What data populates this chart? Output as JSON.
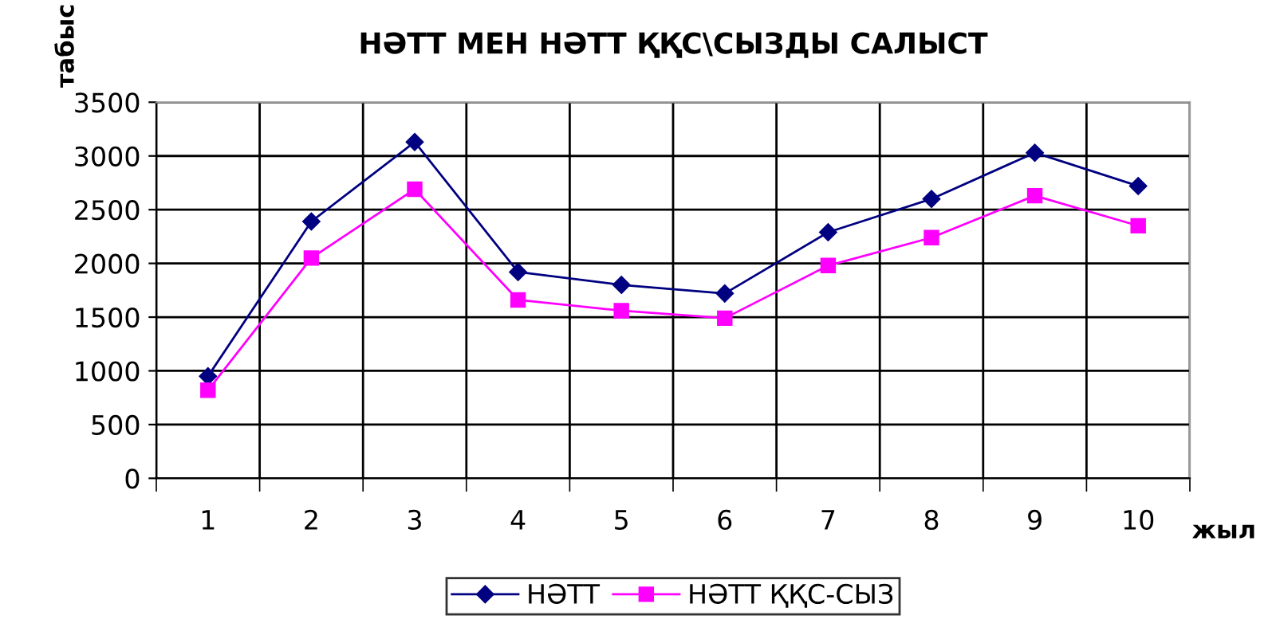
{
  "chart_data": {
    "type": "line",
    "title": "НӘТТ МЕН НӘТТ ҚҚС\\СЫЗДЫ САЛЫСТ",
    "xlabel": "жыл",
    "ylabel": "табыс",
    "categories": [
      "1",
      "2",
      "3",
      "4",
      "5",
      "6",
      "7",
      "8",
      "9",
      "10"
    ],
    "series": [
      {
        "name": "НӘТТ",
        "color": "#000080",
        "marker": "diamond",
        "values": [
          950,
          2390,
          3130,
          1920,
          1800,
          1720,
          2290,
          2600,
          3030,
          2720
        ]
      },
      {
        "name": "НӘТТ ҚҚС-СЫЗ",
        "color": "#ff00ff",
        "marker": "square",
        "values": [
          820,
          2050,
          2690,
          1660,
          1560,
          1490,
          1980,
          2240,
          2630,
          2350
        ]
      }
    ],
    "ylim": [
      0,
      3500
    ],
    "yticks": [
      0,
      500,
      1000,
      1500,
      2000,
      2500,
      3000,
      3500
    ],
    "grid": true,
    "legend": "bottom",
    "line_style": "solid"
  }
}
